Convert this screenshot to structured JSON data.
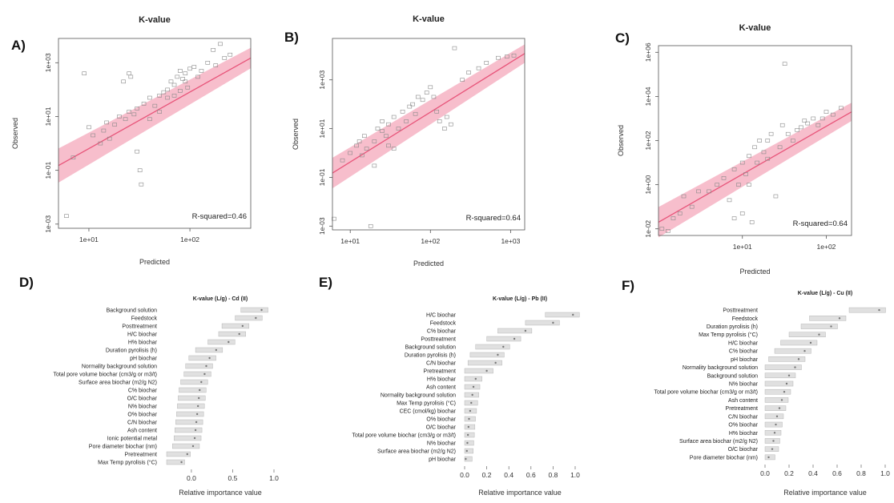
{
  "chart_data": [
    {
      "panel": "A)",
      "type": "scatter",
      "title": "K-value",
      "xlabel": "Predicted",
      "ylabel": "Observed",
      "xscale": "log",
      "yscale": "log",
      "xlim": [
        5,
        400
      ],
      "ylim": [
        0.0007,
        8000
      ],
      "xticks": [
        {
          "v": 10,
          "label": "1e+01"
        },
        {
          "v": 100,
          "label": "1e+02"
        }
      ],
      "yticks": [
        {
          "v": 0.001,
          "label": "1e-03"
        },
        {
          "v": 0.1,
          "label": "1e-01"
        },
        {
          "v": 10,
          "label": "1e+01"
        },
        {
          "v": 1000,
          "label": "1e+03"
        }
      ],
      "annotation": "R-squared=0.46",
      "fit": {
        "x0": 5,
        "y0": 0.15,
        "x1": 400,
        "y1": 1500,
        "band": 0.18
      },
      "points": [
        [
          6,
          0.002
        ],
        [
          7,
          0.3
        ],
        [
          9,
          400
        ],
        [
          10,
          4
        ],
        [
          11,
          2
        ],
        [
          13,
          1
        ],
        [
          14,
          3
        ],
        [
          15,
          6
        ],
        [
          16,
          1.5
        ],
        [
          18,
          5
        ],
        [
          20,
          10
        ],
        [
          22,
          200
        ],
        [
          23,
          8
        ],
        [
          25,
          15
        ],
        [
          25,
          400
        ],
        [
          26,
          300
        ],
        [
          28,
          12
        ],
        [
          30,
          20
        ],
        [
          30,
          0.5
        ],
        [
          32,
          0.1
        ],
        [
          33,
          0.03
        ],
        [
          35,
          30
        ],
        [
          40,
          50
        ],
        [
          45,
          25
        ],
        [
          50,
          60
        ],
        [
          55,
          80
        ],
        [
          60,
          100
        ],
        [
          65,
          200
        ],
        [
          70,
          150
        ],
        [
          75,
          300
        ],
        [
          80,
          500
        ],
        [
          85,
          250
        ],
        [
          90,
          400
        ],
        [
          95,
          120
        ],
        [
          100,
          600
        ],
        [
          110,
          700
        ],
        [
          120,
          300
        ],
        [
          130,
          500
        ],
        [
          150,
          1000
        ],
        [
          170,
          3000
        ],
        [
          180,
          800
        ],
        [
          200,
          5000
        ],
        [
          220,
          1500
        ],
        [
          250,
          2000
        ],
        [
          70,
          60
        ],
        [
          80,
          90
        ],
        [
          60,
          50
        ],
        [
          90,
          200
        ],
        [
          40,
          8
        ],
        [
          50,
          15
        ]
      ]
    },
    {
      "panel": "B)",
      "type": "scatter",
      "title": "K-value",
      "xlabel": "Predicted",
      "ylabel": "Observed",
      "xscale": "log",
      "yscale": "log",
      "xlim": [
        6,
        1500
      ],
      "ylim": [
        0.0007,
        50000
      ],
      "xticks": [
        {
          "v": 10,
          "label": "1e+01"
        },
        {
          "v": 100,
          "label": "1e+02"
        },
        {
          "v": 1000,
          "label": "1e+03"
        }
      ],
      "yticks": [
        {
          "v": 0.001,
          "label": "1e-03"
        },
        {
          "v": 0.1,
          "label": "1e-01"
        },
        {
          "v": 10,
          "label": "1e+01"
        },
        {
          "v": 1000,
          "label": "1e+03"
        }
      ],
      "annotation": "R-squared=0.64",
      "fit": {
        "x0": 6,
        "y0": 0.15,
        "x1": 1500,
        "y1": 12000,
        "band": 0.16
      },
      "points": [
        [
          6,
          0.002
        ],
        [
          8,
          0.5
        ],
        [
          10,
          1
        ],
        [
          12,
          2
        ],
        [
          13,
          3
        ],
        [
          14,
          0.8
        ],
        [
          15,
          5
        ],
        [
          16,
          1.5
        ],
        [
          18,
          0.001
        ],
        [
          20,
          3
        ],
        [
          22,
          10
        ],
        [
          25,
          20
        ],
        [
          28,
          5
        ],
        [
          30,
          15
        ],
        [
          35,
          30
        ],
        [
          40,
          10
        ],
        [
          45,
          50
        ],
        [
          50,
          20
        ],
        [
          55,
          80
        ],
        [
          60,
          100
        ],
        [
          65,
          40
        ],
        [
          70,
          200
        ],
        [
          80,
          150
        ],
        [
          90,
          300
        ],
        [
          100,
          500
        ],
        [
          110,
          200
        ],
        [
          120,
          50
        ],
        [
          130,
          20
        ],
        [
          150,
          10
        ],
        [
          160,
          30
        ],
        [
          180,
          15
        ],
        [
          200,
          20000
        ],
        [
          250,
          1000
        ],
        [
          300,
          2000
        ],
        [
          400,
          3000
        ],
        [
          500,
          5000
        ],
        [
          700,
          8000
        ],
        [
          900,
          9000
        ],
        [
          1100,
          10000
        ],
        [
          30,
          2
        ],
        [
          20,
          0.3
        ],
        [
          25,
          8
        ],
        [
          35,
          1.5
        ]
      ]
    },
    {
      "panel": "C)",
      "type": "scatter",
      "title": "K-value",
      "xlabel": "Predicted",
      "ylabel": "Observed",
      "xscale": "log",
      "yscale": "log",
      "xlim": [
        1,
        200
      ],
      "ylim": [
        0.005,
        2000000
      ],
      "xticks": [
        {
          "v": 10,
          "label": "1e+01"
        },
        {
          "v": 100,
          "label": "1e+02"
        }
      ],
      "yticks": [
        {
          "v": 0.01,
          "label": "1e-02"
        },
        {
          "v": 1,
          "label": "1e+00"
        },
        {
          "v": 100,
          "label": "1e+02"
        },
        {
          "v": 10000,
          "label": "1e+04"
        },
        {
          "v": 1000000,
          "label": "1e+06"
        }
      ],
      "annotation": "R-squared=0.64",
      "fit": {
        "x0": 1,
        "y0": 0.02,
        "x1": 200,
        "y1": 2000,
        "band": 0.16
      },
      "points": [
        [
          1.1,
          0.01
        ],
        [
          1.3,
          0.008
        ],
        [
          1.5,
          0.03
        ],
        [
          1.8,
          0.05
        ],
        [
          2,
          0.3
        ],
        [
          2.5,
          0.1
        ],
        [
          3,
          0.5
        ],
        [
          4,
          0.5
        ],
        [
          5,
          1
        ],
        [
          6,
          2
        ],
        [
          7,
          0.2
        ],
        [
          8,
          5
        ],
        [
          9,
          1
        ],
        [
          10,
          10
        ],
        [
          10,
          0.05
        ],
        [
          11,
          3
        ],
        [
          12,
          20
        ],
        [
          13,
          0.02
        ],
        [
          14,
          50
        ],
        [
          15,
          10
        ],
        [
          16,
          100
        ],
        [
          18,
          30
        ],
        [
          20,
          100
        ],
        [
          22,
          200
        ],
        [
          25,
          0.3
        ],
        [
          28,
          50
        ],
        [
          30,
          500
        ],
        [
          32,
          300000
        ],
        [
          35,
          200
        ],
        [
          40,
          100
        ],
        [
          45,
          300
        ],
        [
          50,
          400
        ],
        [
          55,
          800
        ],
        [
          60,
          600
        ],
        [
          70,
          1000
        ],
        [
          80,
          500
        ],
        [
          90,
          1000
        ],
        [
          100,
          2000
        ],
        [
          120,
          1500
        ],
        [
          150,
          3000
        ],
        [
          8,
          0.03
        ],
        [
          12,
          1
        ],
        [
          20,
          15
        ]
      ]
    },
    {
      "panel": "D)",
      "type": "bar",
      "title": "K-value (L/g) - Cd (II)",
      "xlabel": "Relative importance value",
      "xlim": [
        -0.3,
        1.0
      ],
      "xticks": [
        {
          "v": 0,
          "label": "0.0"
        },
        {
          "v": 0.5,
          "label": "0.5"
        },
        {
          "v": 1,
          "label": "1.0"
        }
      ],
      "categories": [
        "Background solution",
        "Feedstock",
        "Posttreatment",
        "H/C biochar",
        "H% biochar",
        "Duration pyrolisis (h)",
        "pH biochar",
        "Normality background solution",
        "Total pore volume biochar (cm3/g or m3/t)",
        "Surface area biochar (m2/g N2)",
        "C% biochar",
        "O/C biochar",
        "N% biochar",
        "O% biochar",
        "C/N biochar",
        "Ash content",
        "Ionic potential metal",
        "Pore diameter biochar (nm)",
        "Pretreatment",
        "Max Temp pyrolisis (°C)"
      ],
      "values": [
        0.85,
        0.78,
        0.62,
        0.58,
        0.45,
        0.3,
        0.22,
        0.18,
        0.16,
        0.12,
        0.1,
        0.09,
        0.08,
        0.07,
        0.06,
        0.05,
        0.04,
        0.02,
        -0.05,
        -0.12
      ]
    },
    {
      "panel": "E)",
      "type": "bar",
      "title": "K-value (L/g) - Pb (II)",
      "xlabel": "Relative importance value",
      "xlim": [
        0,
        1.0
      ],
      "xticks": [
        {
          "v": 0,
          "label": "0.0"
        },
        {
          "v": 0.2,
          "label": "0.2"
        },
        {
          "v": 0.4,
          "label": "0.4"
        },
        {
          "v": 0.6,
          "label": "0.6"
        },
        {
          "v": 0.8,
          "label": "0.8"
        },
        {
          "v": 1,
          "label": "1.0"
        }
      ],
      "categories": [
        "H/C biochar",
        "Feedstock",
        "C% biochar",
        "Posttreatment",
        "Background solution",
        "Duration pyrolisis (h)",
        "C/N biochar",
        "Pretreatment",
        "H% biochar",
        "Ash content",
        "Normality background solution",
        "Max Temp pyrolisis (°C)",
        "CEC (cmol/kg) biochar",
        "O% biochar",
        "O/C biochar",
        "Total pore volume biochar (cm3/g or m3/t)",
        "N% biochar",
        "Surface area biochar (m2/g N2)",
        "pH biochar"
      ],
      "values": [
        0.98,
        0.8,
        0.55,
        0.45,
        0.35,
        0.3,
        0.28,
        0.2,
        0.1,
        0.08,
        0.07,
        0.06,
        0.05,
        0.04,
        0.035,
        0.03,
        0.025,
        0.02,
        0.01
      ]
    },
    {
      "panel": "F)",
      "type": "bar",
      "title": "K-value (L/g) - Cu (II)",
      "xlabel": "Relative importance value",
      "xlim": [
        0,
        1.0
      ],
      "xticks": [
        {
          "v": 0,
          "label": "0.0"
        },
        {
          "v": 0.2,
          "label": "0.2"
        },
        {
          "v": 0.4,
          "label": "0.4"
        },
        {
          "v": 0.6,
          "label": "0.6"
        },
        {
          "v": 0.8,
          "label": "0.8"
        },
        {
          "v": 1,
          "label": "1.0"
        }
      ],
      "categories": [
        "Posttreatment",
        "Feedstock",
        "Duration pyrolisis (h)",
        "Max Temp pyrolisis (°C)",
        "H/C biochar",
        "C% biochar",
        "pH biochar",
        "Normality background solution",
        "Background solution",
        "N% biochar",
        "Total pore volume biochar (cm3/g or m3/t)",
        "Ash content",
        "Pretreatment",
        "C/N biochar",
        "O% biochar",
        "H% biochar",
        "Surface area biochar (m2/g N2)",
        "O/C biochar",
        "Pore diameter biochar (nm)"
      ],
      "values": [
        0.95,
        0.62,
        0.55,
        0.45,
        0.38,
        0.33,
        0.28,
        0.25,
        0.2,
        0.18,
        0.16,
        0.14,
        0.12,
        0.1,
        0.09,
        0.08,
        0.07,
        0.06,
        0.03
      ]
    }
  ]
}
